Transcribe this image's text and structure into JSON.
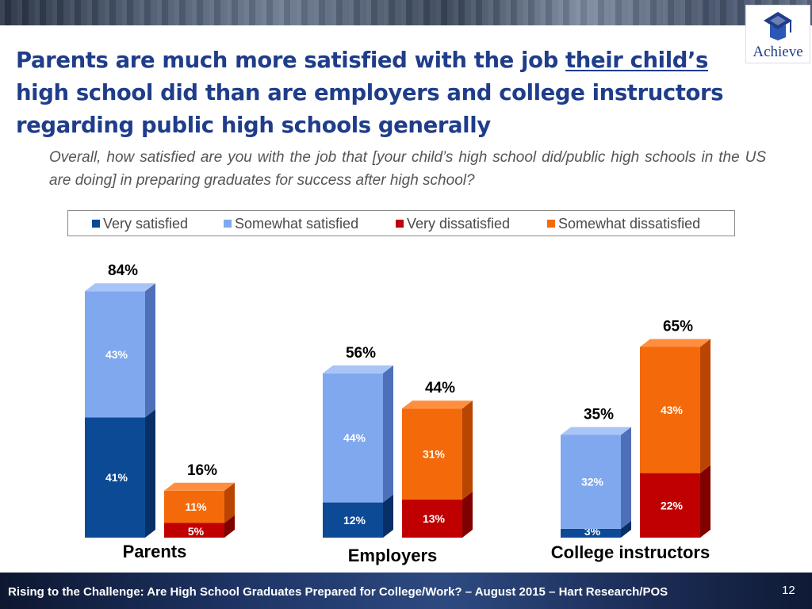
{
  "header": {
    "logo_text": "Achieve",
    "title_parts": [
      {
        "text": "Parents are much more satisfied with the job ",
        "underline": false
      },
      {
        "text": "their child’s",
        "underline": true
      },
      {
        "text": " high school did than are employers and college instructors regarding public high schools generally",
        "underline": false
      }
    ],
    "question": "Overall, how satisfied are you with the job that [your child’s high school did/public high schools in the US are doing] in preparing graduates for success after high school?"
  },
  "legend": {
    "items": [
      {
        "label": "Very satisfied",
        "color": "#0d4a96"
      },
      {
        "label": "Somewhat satisfied",
        "color": "#7fa8ef"
      },
      {
        "label": "Very dissatisfied",
        "color": "#c00000"
      },
      {
        "label": "Somewhat dissatisfied",
        "color": "#f46a0a"
      }
    ]
  },
  "chart_data": {
    "type": "bar",
    "stacked": true,
    "style": "3d",
    "groups": [
      {
        "category": "Parents",
        "stacks": [
          {
            "total_label": "84%",
            "segments": [
              {
                "series": "Very satisfied",
                "value": 41,
                "label": "41%"
              },
              {
                "series": "Somewhat satisfied",
                "value": 43,
                "label": "43%"
              }
            ]
          },
          {
            "total_label": "16%",
            "segments": [
              {
                "series": "Very dissatisfied",
                "value": 5,
                "label": "5%"
              },
              {
                "series": "Somewhat dissatisfied",
                "value": 11,
                "label": "11%"
              }
            ]
          }
        ]
      },
      {
        "category": "Employers",
        "stacks": [
          {
            "total_label": "56%",
            "segments": [
              {
                "series": "Very satisfied",
                "value": 12,
                "label": "12%"
              },
              {
                "series": "Somewhat satisfied",
                "value": 44,
                "label": "44%"
              }
            ]
          },
          {
            "total_label": "44%",
            "segments": [
              {
                "series": "Very dissatisfied",
                "value": 13,
                "label": "13%"
              },
              {
                "series": "Somewhat dissatisfied",
                "value": 31,
                "label": "31%"
              }
            ]
          }
        ]
      },
      {
        "category": "College instructors",
        "stacks": [
          {
            "total_label": "35%",
            "segments": [
              {
                "series": "Very satisfied",
                "value": 3,
                "label": "3%"
              },
              {
                "series": "Somewhat satisfied",
                "value": 32,
                "label": "32%"
              }
            ]
          },
          {
            "total_label": "65%",
            "segments": [
              {
                "series": "Very dissatisfied",
                "value": 22,
                "label": "22%"
              },
              {
                "series": "Somewhat dissatisfied",
                "value": 43,
                "label": "43%"
              }
            ]
          }
        ]
      }
    ],
    "ylim": [
      0,
      100
    ],
    "grid": false,
    "legend_position": "top"
  },
  "footer": {
    "text": "Rising to the Challenge:  Are High School Graduates Prepared for College/Work? – August 2015 – Hart Research/POS",
    "page_number": "12"
  }
}
